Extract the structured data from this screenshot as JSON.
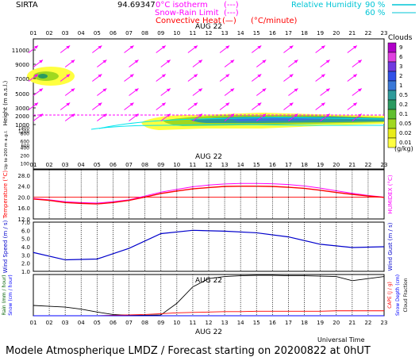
{
  "header": {
    "site": "SIRTA",
    "coords": "94.69347",
    "legend_isotherm": "0°C isotherm",
    "legend_isotherm_sym": "(---)",
    "legend_snowrain": "Snow-Rain Limit",
    "legend_snowrain_sym": "(---)",
    "legend_convective": "Convective Heat",
    "legend_convective_sym": "(—)",
    "legend_units": "(°C/minute)",
    "legend_rh": "Relative Humidity",
    "legend_rh_90": "90 %",
    "legend_rh_60": "60 %",
    "colors": {
      "isotherm": "#ff00ff",
      "snowrain": "#ff00ff",
      "convective": "#ff0000",
      "rh": "#00e5ee"
    }
  },
  "footer": {
    "universal_time": "Universal Time",
    "caption": "Modele Atmospherique LMDZ / Forecast starting on 20200822 at 0hUT"
  },
  "hours": [
    "01",
    "02",
    "03",
    "04",
    "05",
    "06",
    "07",
    "08",
    "09",
    "10",
    "11",
    "12",
    "13",
    "14",
    "15",
    "16",
    "17",
    "18",
    "19",
    "20",
    "21",
    "22",
    "23"
  ],
  "date_label": "AUG 22",
  "chart_data": [
    {
      "type": "heatmap",
      "name": "clouds",
      "ylabel": "Height (m a.s.l.)",
      "ylabel2": "Up to 200 m a.g.l.",
      "y_ticks_upper": [
        "11000",
        "9000",
        "7000",
        "5000",
        "3000",
        "2000",
        "1000"
      ],
      "y_ticks_lower": [
        "800",
        "600",
        "400",
        "200",
        "100"
      ],
      "legend_title": "Clouds",
      "legend_levels": [
        "9",
        "6",
        "3",
        "2",
        "1",
        "0.5",
        "0.2",
        "0.1",
        "0.05",
        "0.02",
        "0.01"
      ],
      "legend_colors": [
        "#b000c8",
        "#e040e0",
        "#7038e0",
        "#3050e8",
        "#3a78d8",
        "#2e9a9a",
        "#2a9a60",
        "#60bf30",
        "#a0d820",
        "#e8ec18",
        "#ffff40"
      ],
      "legend_unit": "(g/kg)",
      "isotherm_m": 2960,
      "wind_arrow_color": "#ff00ff",
      "arrow_rows_m": [
        11000,
        9500,
        8000,
        6500,
        5000,
        4000
      ],
      "arrow_directions": [
        "SW"
      ],
      "cloud_patches": [
        {
          "hours": [
            1,
            3
          ],
          "height_m": [
            7000,
            8800
          ],
          "max_g_kg": 0.2
        },
        {
          "hours": [
            9,
            23
          ],
          "height_m": [
            1900,
            3000
          ],
          "max_g_kg": 0.2
        }
      ]
    },
    {
      "type": "line",
      "name": "temperature",
      "ylabel": "Temperature (°C)",
      "ylabel_right": "HUMIDEX (°C)",
      "y_ticks": [
        "28.0",
        "24.0",
        "20.0",
        "16.0",
        "12.0"
      ],
      "ylim": [
        12,
        30
      ],
      "x": [
        1,
        2,
        3,
        4,
        5,
        6,
        7,
        8,
        9,
        10,
        11,
        12,
        13,
        14,
        15,
        16,
        17,
        18,
        19,
        20,
        21,
        22,
        23
      ],
      "series": [
        {
          "values": [
            19.5,
            19.0,
            18.3,
            18.0,
            17.8,
            18.3,
            19.0,
            20.4,
            21.8,
            22.8,
            23.8,
            24.4,
            24.8,
            25.0,
            25.0,
            24.9,
            24.6,
            24.1,
            23.3,
            22.3,
            21.4,
            20.6,
            20.0
          ],
          "color": "#ff00ff"
        },
        {
          "values": [
            19.3,
            18.8,
            18.0,
            17.7,
            17.5,
            18.0,
            18.8,
            20.0,
            21.3,
            22.2,
            23.0,
            23.5,
            23.9,
            24.0,
            24.0,
            23.9,
            23.6,
            23.2,
            22.5,
            21.7,
            21.0,
            20.4,
            19.9
          ],
          "color": "#ff0000"
        }
      ],
      "reference_line": 20.0
    },
    {
      "type": "line",
      "name": "wind",
      "ylabel": "Wind Speed (m / s)",
      "ylabel_right": "Wind Gust (m / s)",
      "y_ticks": [
        "7.0",
        "6.0",
        "5.0",
        "4.0",
        "3.0",
        "2.0",
        "1.0"
      ],
      "ylim": [
        1,
        7
      ],
      "x": [
        1,
        3,
        5,
        7,
        9,
        11,
        13,
        15,
        17,
        19,
        21,
        23
      ],
      "series": [
        {
          "values": [
            3.3,
            2.4,
            2.5,
            3.8,
            5.6,
            6.0,
            5.9,
            5.7,
            5.2,
            4.3,
            3.9,
            4.0
          ],
          "color": "#0000cc"
        }
      ]
    },
    {
      "type": "line",
      "name": "precip",
      "ylabel": "Rain (mm / hour)",
      "ylabel2": "Snow (cm / hour)",
      "ylabel_right": "CAPE (J / g)",
      "ylabel_right2": "Snow Depth (cm)",
      "ylabel_right3": "Cloud Fraction",
      "x": [
        1,
        2,
        3,
        4,
        5,
        6,
        7,
        8,
        9,
        10,
        11,
        12,
        13,
        14,
        15,
        16,
        17,
        18,
        19,
        20,
        21,
        22,
        23
      ],
      "series": [
        {
          "values": [
            0.25,
            0.23,
            0.21,
            0.16,
            0.09,
            0.03,
            0.01,
            0.01,
            0.02,
            0.3,
            0.7,
            0.9,
            0.95,
            0.97,
            0.98,
            0.98,
            0.97,
            0.97,
            0.96,
            0.95,
            0.85,
            0.9,
            0.95
          ],
          "color": "#000000"
        },
        {
          "values": [
            0,
            0,
            0,
            0,
            0,
            0.01,
            0.02,
            0.03,
            0.05,
            0.07,
            0.08,
            0.09,
            0.1,
            0.1,
            0.11,
            0.11,
            0.11,
            0.11,
            0.11,
            0.12,
            0.12,
            0.12,
            0.12
          ],
          "color": "#ff0000"
        },
        {
          "values": [
            0,
            0,
            0,
            0,
            0,
            0,
            0,
            0,
            0,
            0,
            0,
            0,
            0,
            0,
            0,
            0,
            0,
            0,
            0,
            0,
            0,
            0,
            0
          ],
          "color": "#0000ff"
        }
      ],
      "ylim": [
        0,
        1
      ]
    }
  ]
}
